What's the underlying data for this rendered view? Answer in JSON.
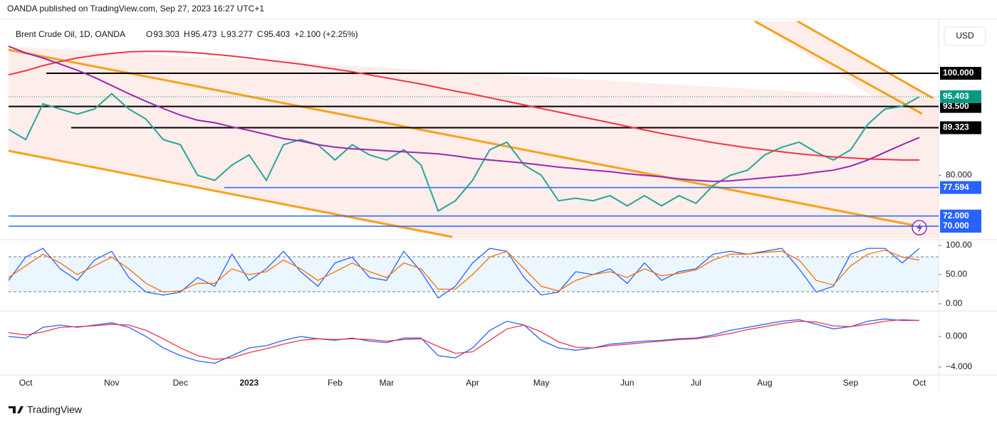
{
  "header": {
    "publisher": "OANDA published on TradingView.com, Sep 27, 2023 16:27 UTC+1"
  },
  "legend": {
    "symbol": "Brent Crude Oil, 1D, OANDA",
    "ohlc": [
      {
        "key": "O",
        "value": "93.303"
      },
      {
        "key": "H",
        "value": "95.473"
      },
      {
        "key": "L",
        "value": "93.277"
      },
      {
        "key": "C",
        "value": "95.403"
      }
    ],
    "change": "+2.100 (+2.25%)"
  },
  "currency": "USD",
  "footer": {
    "brand": "TradingView"
  },
  "chart_data": [
    {
      "type": "line",
      "categories": [
        null,
        "Oct",
        null,
        null,
        null,
        null,
        "Nov",
        null,
        null,
        null,
        "Dec",
        null,
        null,
        null,
        "2023",
        null,
        null,
        null,
        null,
        "Feb",
        null,
        null,
        "Mar",
        null,
        null,
        null,
        null,
        "Apr",
        null,
        null,
        null,
        "May",
        null,
        null,
        null,
        null,
        "Jun",
        null,
        null,
        null,
        "Jul",
        null,
        null,
        null,
        "Aug",
        null,
        null,
        null,
        null,
        "Sep",
        null,
        null,
        null,
        "Oct"
      ],
      "ylim": [
        67.63,
        110.19
      ],
      "yticks": [
        {
          "value": 80,
          "label": "80.000"
        }
      ],
      "current_price": {
        "value": 95.403,
        "label": "95.403",
        "color": "#089981"
      },
      "levels": [
        {
          "value": 100,
          "label": "100.000",
          "color": "#000000"
        },
        {
          "value": 93.5,
          "label": "93.500",
          "color": "#000000"
        },
        {
          "value": 89.323,
          "label": "89.323",
          "color": "#000000"
        },
        {
          "value": 77.594,
          "label": "77.594",
          "color": "#2962ff"
        },
        {
          "value": 72,
          "label": "72.000",
          "color": "#2962ff"
        },
        {
          "value": 70,
          "label": "70.000",
          "color": "#2962ff"
        }
      ],
      "series": [
        {
          "color": "#26a69a",
          "values": [
            89,
            87,
            94,
            93,
            92,
            93,
            96,
            93,
            91,
            87,
            86,
            80,
            79,
            82,
            84,
            79,
            86,
            87,
            86,
            83,
            86,
            84,
            83,
            85,
            82,
            73,
            75,
            79,
            85,
            86.5,
            82,
            80,
            75,
            75.5,
            75,
            76,
            74,
            76,
            74,
            76,
            74.5,
            78,
            80,
            81,
            84,
            85.5,
            86.5,
            84.5,
            83,
            85,
            90,
            93,
            93.5,
            95.403
          ]
        },
        {
          "color": "#f23645",
          "values": [
            99.7,
            100.5,
            101.5,
            102.3,
            103,
            103.5,
            103.9,
            104.2,
            104.3,
            104.3,
            104.2,
            104,
            103.7,
            103.4,
            103,
            102.6,
            102.2,
            101.8,
            101.3,
            100.8,
            100.3,
            99.7,
            99.1,
            98.5,
            97.9,
            97.2,
            96.5,
            95.9,
            95.2,
            94.5,
            93.8,
            93.1,
            92.4,
            91.7,
            91,
            90.3,
            89.6,
            88.9,
            88.2,
            87.6,
            87,
            86.4,
            85.9,
            85.4,
            85,
            84.6,
            84.2,
            83.9,
            83.6,
            83.4,
            83.2,
            83.1,
            83,
            83
          ]
        },
        {
          "color": "#9c27b0",
          "values": [
            105.3,
            104,
            103,
            101.8,
            100.6,
            99.2,
            97.6,
            96,
            94.5,
            93.1,
            91.8,
            90.8,
            90.3,
            89.5,
            88.8,
            88,
            87.2,
            86.7,
            86,
            85.5,
            85.2,
            85,
            84.8,
            84.6,
            84.4,
            84.2,
            83.8,
            83.3,
            83,
            82.7,
            82.4,
            82,
            81.6,
            81.3,
            81,
            80.7,
            80.3,
            80,
            79.7,
            79.3,
            79,
            78.8,
            78.9,
            79.2,
            79.5,
            79.8,
            80.1,
            80.6,
            81,
            81.8,
            83,
            84.5,
            86,
            87.4
          ]
        }
      ]
    },
    {
      "type": "line",
      "ylim": [
        -9.8,
        108.5
      ],
      "yticks": [
        {
          "value": 100,
          "label": "100.00"
        },
        {
          "value": 50,
          "label": "50.00"
        },
        {
          "value": 0,
          "label": "0.00"
        }
      ],
      "series": [
        {
          "color": "#2962ff",
          "values": [
            40,
            80,
            95,
            60,
            40,
            75,
            90,
            45,
            20,
            15,
            20,
            45,
            30,
            85,
            40,
            60,
            90,
            55,
            30,
            70,
            80,
            45,
            40,
            90,
            55,
            10,
            30,
            70,
            95,
            90,
            45,
            15,
            20,
            55,
            50,
            60,
            35,
            70,
            40,
            55,
            60,
            85,
            90,
            85,
            90,
            95,
            60,
            20,
            30,
            85,
            95,
            95,
            70,
            95
          ]
        },
        {
          "color": "#ff6d00",
          "values": [
            45,
            65,
            85,
            70,
            50,
            65,
            80,
            60,
            35,
            20,
            22,
            35,
            35,
            60,
            50,
            55,
            75,
            60,
            40,
            55,
            70,
            55,
            45,
            70,
            60,
            25,
            25,
            50,
            80,
            90,
            60,
            30,
            22,
            40,
            50,
            55,
            45,
            60,
            48,
            52,
            58,
            75,
            85,
            85,
            88,
            90,
            75,
            40,
            32,
            65,
            85,
            92,
            80,
            75
          ]
        }
      ]
    },
    {
      "type": "line",
      "ylim": [
        -4.84,
        3.26
      ],
      "yticks": [
        {
          "value": 0,
          "label": "0.000"
        },
        {
          "value": -4,
          "label": "−4.000"
        }
      ],
      "series": [
        {
          "color": "#2962ff",
          "values": [
            0,
            -0.2,
            1.2,
            1.5,
            1.2,
            1.5,
            1.8,
            1.2,
            0,
            -1.5,
            -2.5,
            -3.2,
            -3.5,
            -2.5,
            -1.5,
            -1.2,
            -0.5,
            0,
            -0.3,
            -0.5,
            -0.2,
            -0.6,
            -0.8,
            -0.2,
            -0.2,
            -2.5,
            -2.8,
            -1.5,
            0.8,
            2,
            1.5,
            -0.5,
            -1.5,
            -1.8,
            -1.5,
            -1,
            -0.8,
            -0.6,
            -0.5,
            -0.3,
            -0.2,
            0.2,
            0.8,
            1.2,
            1.6,
            2,
            2.2,
            1.6,
            1,
            1.3,
            2,
            2.3,
            2.1,
            2.1
          ]
        },
        {
          "color": "#f23645",
          "values": [
            0.5,
            0.2,
            0.6,
            1.2,
            1.3,
            1.4,
            1.6,
            1.5,
            0.8,
            -0.3,
            -1.5,
            -2.5,
            -3,
            -2.8,
            -2.1,
            -1.6,
            -1,
            -0.5,
            -0.3,
            -0.4,
            -0.3,
            -0.4,
            -0.6,
            -0.4,
            -0.3,
            -1.3,
            -2.2,
            -2,
            -0.5,
            1,
            1.5,
            0.6,
            -0.7,
            -1.4,
            -1.5,
            -1.2,
            -1,
            -0.8,
            -0.6,
            -0.4,
            -0.3,
            0,
            0.4,
            0.9,
            1.3,
            1.7,
            2,
            1.9,
            1.4,
            1.3,
            1.6,
            2,
            2.2,
            2.1
          ]
        }
      ]
    }
  ]
}
